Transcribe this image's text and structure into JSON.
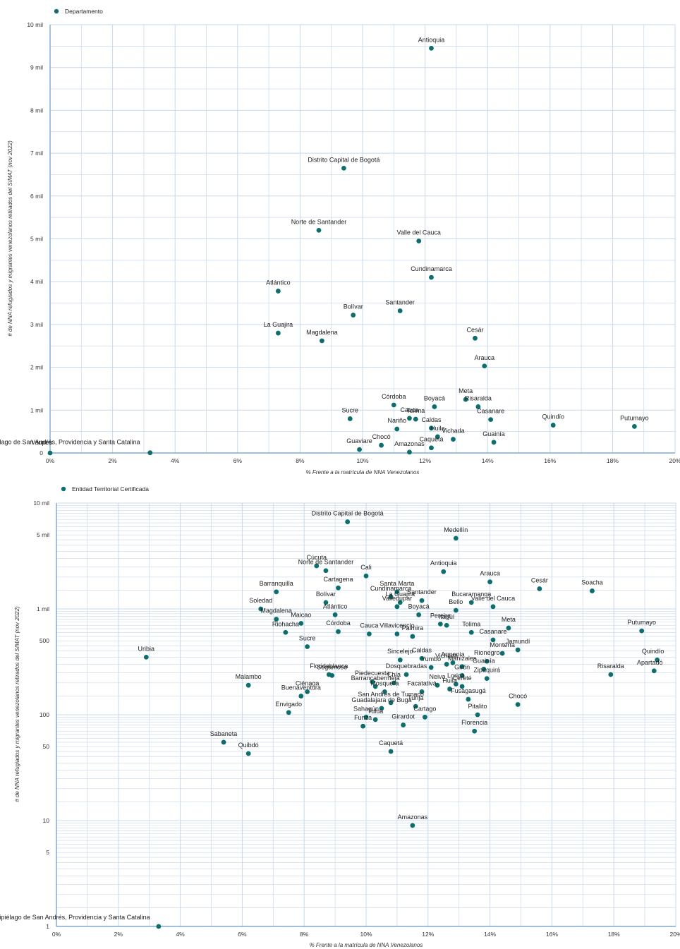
{
  "colors": {
    "point": "#0e6e6e",
    "grid": "#c8d8ec",
    "axis": "#6699cc"
  },
  "chart_data": [
    {
      "type": "scatter",
      "series": [
        {
          "name": "Departamento",
          "color": "#0e6e6e"
        }
      ],
      "xlabel": "% Frente a la matrícula de NNA Venezolanos",
      "ylabel": "# de NNA refugiados y migrantes venezolanos retirados del SIMAT (nov 2022)",
      "xlim": [
        0,
        20
      ],
      "ylim": [
        0,
        10000
      ],
      "x_ticks": [
        "0%",
        "2%",
        "4%",
        "6%",
        "8%",
        "10%",
        "12%",
        "14%",
        "16%",
        "18%",
        "20%"
      ],
      "y_ticks": [
        "0",
        "1 mil",
        "2 mil",
        "3 mil",
        "4 mil",
        "5 mil",
        "6 mil",
        "7 mil",
        "8 mil",
        "9 mil",
        "10 mil"
      ],
      "grid": true,
      "legend_position": "top-left",
      "points": [
        {
          "label": "Antioquia",
          "x": 12.2,
          "y": 9450
        },
        {
          "label": "Distrito Capital de Bogotá",
          "x": 9.4,
          "y": 6650
        },
        {
          "label": "Norte de Santander",
          "x": 8.6,
          "y": 5200
        },
        {
          "label": "Valle del Cauca",
          "x": 11.8,
          "y": 4950
        },
        {
          "label": "Cundinamarca",
          "x": 12.2,
          "y": 4100
        },
        {
          "label": "Atlántico",
          "x": 7.3,
          "y": 3780
        },
        {
          "label": "Santander",
          "x": 11.2,
          "y": 3320
        },
        {
          "label": "Bolívar",
          "x": 9.7,
          "y": 3220
        },
        {
          "label": "La Guajira",
          "x": 7.3,
          "y": 2800
        },
        {
          "label": "Magdalena",
          "x": 8.7,
          "y": 2620
        },
        {
          "label": "Cesár",
          "x": 13.6,
          "y": 2680
        },
        {
          "label": "Arauca",
          "x": 13.9,
          "y": 2030
        },
        {
          "label": "Córdoba",
          "x": 11.0,
          "y": 1120
        },
        {
          "label": "Boyacá",
          "x": 12.3,
          "y": 1080
        },
        {
          "label": "Meta",
          "x": 13.3,
          "y": 1250
        },
        {
          "label": "Risaralda",
          "x": 13.7,
          "y": 1080
        },
        {
          "label": "Casanare",
          "x": 14.1,
          "y": 780
        },
        {
          "label": "Quindío",
          "x": 16.1,
          "y": 650
        },
        {
          "label": "Putumayo",
          "x": 18.7,
          "y": 620
        },
        {
          "label": "Sucre",
          "x": 9.6,
          "y": 800
        },
        {
          "label": "Cauca",
          "x": 11.5,
          "y": 810
        },
        {
          "label": "Tolima",
          "x": 11.7,
          "y": 790
        },
        {
          "label": "Nariño",
          "x": 11.1,
          "y": 560
        },
        {
          "label": "Caldas",
          "x": 12.2,
          "y": 580
        },
        {
          "label": "Huila",
          "x": 12.4,
          "y": 380
        },
        {
          "label": "Vichada",
          "x": 12.9,
          "y": 320
        },
        {
          "label": "Guainía",
          "x": 14.2,
          "y": 250
        },
        {
          "label": "Chocó",
          "x": 10.6,
          "y": 180
        },
        {
          "label": "Guaviare",
          "x": 9.9,
          "y": 80
        },
        {
          "label": "Amazonas",
          "x": 11.5,
          "y": 20
        },
        {
          "label": "Caquetá",
          "x": 12.2,
          "y": 120
        },
        {
          "label": "Vaupés",
          "x": 0.0,
          "y": 0
        },
        {
          "label": "Archipiélago de San Andrés, Providencia y Santa Catalina",
          "x": 3.2,
          "y": 5
        }
      ]
    },
    {
      "type": "scatter",
      "series": [
        {
          "name": "Entidad Territorial Certificada",
          "color": "#0e6e6e"
        }
      ],
      "xlabel": "% Frente a la matrícula de NNA Venezolanos",
      "ylabel": "# de NNA refugiados y migrantes venezolanos retirados del SIMAT (nov 2022)",
      "xlim": [
        0,
        20
      ],
      "ylim": [
        1,
        10000
      ],
      "log_y": true,
      "x_ticks": [
        "0%",
        "2%",
        "4%",
        "6%",
        "8%",
        "10%",
        "12%",
        "14%",
        "16%",
        "18%",
        "20%"
      ],
      "y_ticks": [
        {
          "v": 10000,
          "t": "10 mil"
        },
        {
          "v": 5000,
          "t": "5 mil"
        },
        {
          "v": 1000,
          "t": "1 mil"
        },
        {
          "v": 500,
          "t": "500"
        },
        {
          "v": 100,
          "t": "100"
        },
        {
          "v": 50,
          "t": "50"
        },
        {
          "v": 10,
          "t": "10"
        },
        {
          "v": 5,
          "t": "5"
        },
        {
          "v": 1,
          "t": "1"
        }
      ],
      "grid": true,
      "legend_position": "top-left",
      "points": [
        {
          "label": "Distrito Capital de Bogotá",
          "x": 9.4,
          "y": 6650
        },
        {
          "label": "Medellín",
          "x": 12.9,
          "y": 4650
        },
        {
          "label": "Cúcuta",
          "x": 8.4,
          "y": 2550
        },
        {
          "label": "Norte de Santander",
          "x": 8.7,
          "y": 2300
        },
        {
          "label": "Cali",
          "x": 10.0,
          "y": 2050
        },
        {
          "label": "Antioquia",
          "x": 12.5,
          "y": 2250
        },
        {
          "label": "Arauca",
          "x": 14.0,
          "y": 1800
        },
        {
          "label": "Cesár",
          "x": 15.6,
          "y": 1550
        },
        {
          "label": "Soacha",
          "x": 17.3,
          "y": 1480
        },
        {
          "label": "Cartagena",
          "x": 9.1,
          "y": 1580
        },
        {
          "label": "Santa Marta",
          "x": 11.0,
          "y": 1450
        },
        {
          "label": "Cundinamarca",
          "x": 10.8,
          "y": 1300
        },
        {
          "label": "Barranquilla",
          "x": 7.1,
          "y": 1450
        },
        {
          "label": "Bolívar",
          "x": 8.7,
          "y": 1150
        },
        {
          "label": "La Guajira",
          "x": 11.1,
          "y": 1150
        },
        {
          "label": "Santander",
          "x": 11.8,
          "y": 1200
        },
        {
          "label": "Bucaramanga",
          "x": 13.4,
          "y": 1150
        },
        {
          "label": "Valle del Cauca",
          "x": 14.1,
          "y": 1050
        },
        {
          "label": "Bello",
          "x": 12.9,
          "y": 970
        },
        {
          "label": "Soledad",
          "x": 6.6,
          "y": 1000
        },
        {
          "label": "Valledupar",
          "x": 11.0,
          "y": 1050
        },
        {
          "label": "Atlántico",
          "x": 9.0,
          "y": 880
        },
        {
          "label": "Magdalena",
          "x": 7.1,
          "y": 800
        },
        {
          "label": "Maicao",
          "x": 7.9,
          "y": 730
        },
        {
          "label": "Boyacá",
          "x": 11.7,
          "y": 880
        },
        {
          "label": "Riohacha",
          "x": 7.4,
          "y": 600
        },
        {
          "label": "Córdoba",
          "x": 9.1,
          "y": 610
        },
        {
          "label": "Cauca",
          "x": 10.1,
          "y": 580
        },
        {
          "label": "Villavicencio",
          "x": 11.0,
          "y": 580
        },
        {
          "label": "Pereira",
          "x": 12.4,
          "y": 720
        },
        {
          "label": "Itagüí",
          "x": 12.6,
          "y": 700
        },
        {
          "label": "Meta",
          "x": 14.6,
          "y": 660
        },
        {
          "label": "Tolima",
          "x": 13.4,
          "y": 600
        },
        {
          "label": "Putumayo",
          "x": 18.9,
          "y": 620
        },
        {
          "label": "Sucre",
          "x": 8.1,
          "y": 440
        },
        {
          "label": "Palmira",
          "x": 11.5,
          "y": 550
        },
        {
          "label": "Casanare",
          "x": 14.1,
          "y": 510
        },
        {
          "label": "Jamundí",
          "x": 14.9,
          "y": 410
        },
        {
          "label": "Uribia",
          "x": 2.9,
          "y": 350
        },
        {
          "label": "Sincelejo",
          "x": 11.1,
          "y": 330
        },
        {
          "label": "Caldas",
          "x": 11.8,
          "y": 340
        },
        {
          "label": "Montería",
          "x": 14.4,
          "y": 380
        },
        {
          "label": "Rionegro",
          "x": 13.9,
          "y": 320
        },
        {
          "label": "Quindío",
          "x": 19.4,
          "y": 330
        },
        {
          "label": "Apartadó",
          "x": 19.3,
          "y": 260
        },
        {
          "label": "Risaralda",
          "x": 17.9,
          "y": 240
        },
        {
          "label": "Floridablanca",
          "x": 8.8,
          "y": 240
        },
        {
          "label": "Armenia",
          "x": 12.8,
          "y": 310
        },
        {
          "label": "Vichada",
          "x": 12.6,
          "y": 300
        },
        {
          "label": "Yumbo",
          "x": 12.1,
          "y": 280
        },
        {
          "label": "Manizales",
          "x": 13.1,
          "y": 285
        },
        {
          "label": "Sogamoso",
          "x": 8.9,
          "y": 235
        },
        {
          "label": "Dosquebradas",
          "x": 11.3,
          "y": 240
        },
        {
          "label": "Guainía",
          "x": 13.8,
          "y": 270
        },
        {
          "label": "Zipaquirá",
          "x": 13.9,
          "y": 220
        },
        {
          "label": "Piedecuesta",
          "x": 10.2,
          "y": 205
        },
        {
          "label": "Chía",
          "x": 10.9,
          "y": 200
        },
        {
          "label": "Girón",
          "x": 13.1,
          "y": 235
        },
        {
          "label": "Barrancabermeja",
          "x": 10.3,
          "y": 185
        },
        {
          "label": "Malambo",
          "x": 6.2,
          "y": 190
        },
        {
          "label": "Neiva",
          "x": 12.3,
          "y": 190
        },
        {
          "label": "Lorica",
          "x": 12.9,
          "y": 195
        },
        {
          "label": "Cereté",
          "x": 13.1,
          "y": 185
        },
        {
          "label": "Huila",
          "x": 12.7,
          "y": 175
        },
        {
          "label": "Mosquera",
          "x": 10.6,
          "y": 165
        },
        {
          "label": "Facatativá",
          "x": 11.8,
          "y": 165
        },
        {
          "label": "Ciénaga",
          "x": 8.1,
          "y": 165
        },
        {
          "label": "Buenaventura",
          "x": 7.9,
          "y": 150
        },
        {
          "label": "Fusagasugá",
          "x": 13.3,
          "y": 140
        },
        {
          "label": "Chocó",
          "x": 14.9,
          "y": 125
        },
        {
          "label": "San Andrés de Tumaco",
          "x": 10.8,
          "y": 130
        },
        {
          "label": "Guadalajara de Buga",
          "x": 10.5,
          "y": 115
        },
        {
          "label": "Tunja",
          "x": 11.6,
          "y": 120
        },
        {
          "label": "Envigado",
          "x": 7.5,
          "y": 105
        },
        {
          "label": "Sahagún",
          "x": 10.0,
          "y": 95
        },
        {
          "label": "Tuluá",
          "x": 10.3,
          "y": 90
        },
        {
          "label": "Cartago",
          "x": 11.9,
          "y": 95
        },
        {
          "label": "Pitalito",
          "x": 13.6,
          "y": 100
        },
        {
          "label": "Girardot",
          "x": 11.2,
          "y": 80
        },
        {
          "label": "Funza",
          "x": 9.9,
          "y": 78
        },
        {
          "label": "Florencia",
          "x": 13.5,
          "y": 70
        },
        {
          "label": "Sabaneta",
          "x": 5.4,
          "y": 55
        },
        {
          "label": "Quibdó",
          "x": 6.2,
          "y": 43
        },
        {
          "label": "Caquetá",
          "x": 10.8,
          "y": 45
        },
        {
          "label": "Amazonas",
          "x": 11.5,
          "y": 9
        },
        {
          "label": "Archipiélago de San Andrés, Providencia y Santa Catalina",
          "x": 3.3,
          "y": 1
        }
      ]
    }
  ]
}
